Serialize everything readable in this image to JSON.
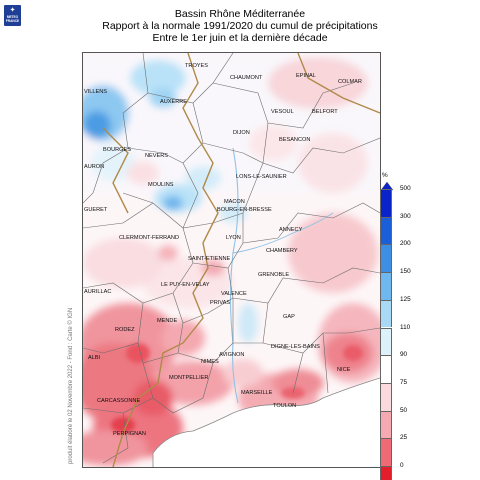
{
  "header": {
    "line1": "Bassin Rhône Méditerranée",
    "line2": "Rapport à la normale 1991/2020 du cumul de précipitations",
    "line3": "Entre le 1er juin et la dernière décade"
  },
  "logo": {
    "text": "METEO FRANCE",
    "icon": "meteo-france-logo-icon"
  },
  "credit": "produit élaboré le 02 Novembre 2022 - Fond : Carte © IGN",
  "legend": {
    "unit": "%",
    "ticks": [
      "500",
      "300",
      "200",
      "150",
      "125",
      "110",
      "90",
      "75",
      "50",
      "25",
      "0"
    ],
    "colors": [
      "#0b24c9",
      "#1a5fd8",
      "#3d8fe3",
      "#6eb8ef",
      "#a8daf6",
      "#ddf1fb",
      "#ffffff",
      "#fbd9dc",
      "#f6a9b0",
      "#ee6a74",
      "#e31d2a"
    ]
  },
  "map": {
    "cities": [
      "TROYES",
      "CHAUMONT",
      "EPINAL",
      "COLMAR",
      "AUXERRE",
      "VESOUL",
      "BELFORT",
      "DIJON",
      "BESANCON",
      "BOURGES",
      "NEVERS",
      "LONS-LE-SAUNIER",
      "MOULINS",
      "MACON",
      "BOURG-EN-BRESSE",
      "ANNECY",
      "CLERMONT-FERRAND",
      "LYON",
      "CHAMBERY",
      "SAINT-ETIENNE",
      "GRENOBLE",
      "LE PUY-EN-VELAY",
      "VALENCE",
      "PRIVAS",
      "GAP",
      "MENDE",
      "RODEZ",
      "DIGNE-LES-BAINS",
      "AVIGNON",
      "NICE",
      "ALBI",
      "NIMES",
      "MONTPELLIER",
      "CARCASSONNE",
      "MARSEILLE",
      "TOULON",
      "PERPIGNAN",
      "VILLENS",
      "GUERET",
      "AURILLAC",
      "AURON"
    ]
  }
}
